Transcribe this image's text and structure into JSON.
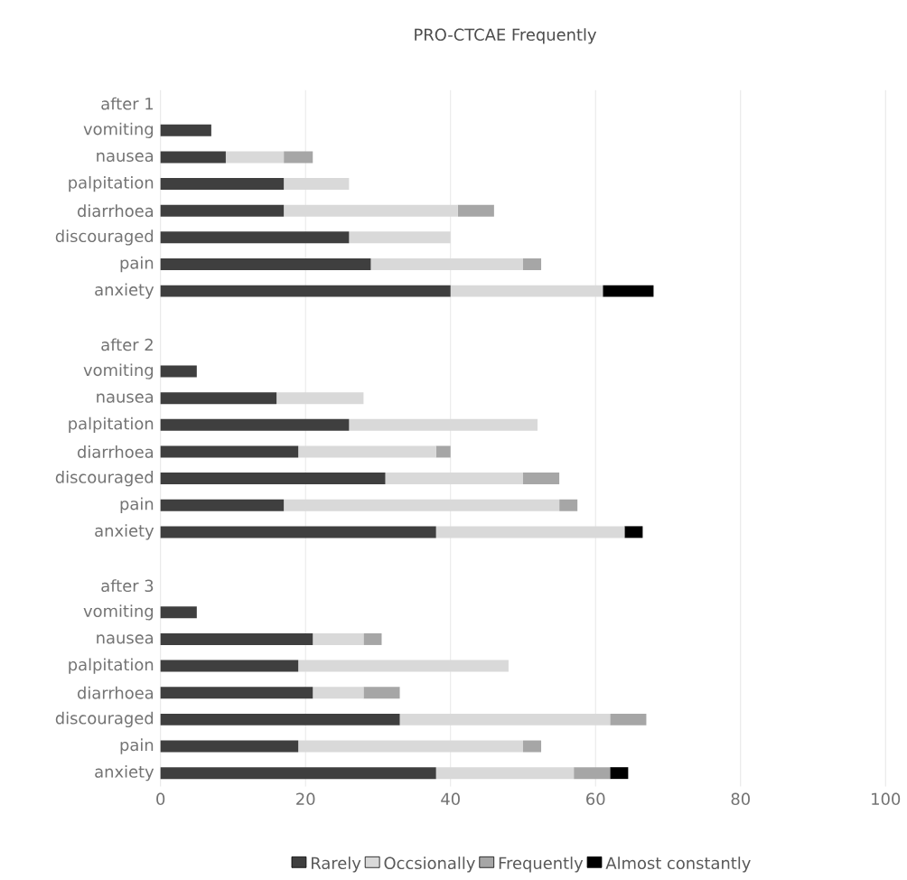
{
  "chart_data": {
    "type": "bar",
    "orientation": "horizontal",
    "stacked": true,
    "title": "PRO-CTCAE Frequently",
    "categories": [
      "after 1",
      "vomiting",
      "nausea",
      "palpitation",
      "diarrhoea",
      "discouraged",
      "pain",
      "anxiety",
      null,
      "after 2",
      "vomiting",
      "nausea",
      "palpitation",
      "diarrhoea",
      "discouraged",
      "pain",
      "anxiety",
      null,
      "after 3",
      "vomiting",
      "nausea",
      "palpitation",
      "diarrhoea",
      "discouraged",
      "pain",
      "anxiety"
    ],
    "series": [
      {
        "name": "Rarely",
        "color": "#3f3f3f",
        "values": [
          null,
          7,
          9,
          17,
          17,
          26,
          29,
          40,
          null,
          null,
          5,
          16,
          26,
          19,
          31,
          17,
          38,
          null,
          null,
          5,
          21,
          19,
          21,
          33,
          19,
          38
        ]
      },
      {
        "name": "Occsionally",
        "color": "#d9d9d9",
        "values": [
          null,
          null,
          8,
          9,
          24,
          14,
          21,
          21,
          null,
          null,
          null,
          12,
          26,
          19,
          19,
          38,
          26,
          null,
          null,
          null,
          7,
          29,
          7,
          29,
          31,
          19
        ]
      },
      {
        "name": "Frequently",
        "color": "#a6a6a6",
        "values": [
          null,
          null,
          4,
          null,
          5,
          null,
          2.5,
          null,
          null,
          null,
          null,
          null,
          null,
          2,
          5,
          2.5,
          null,
          null,
          null,
          null,
          2.5,
          null,
          5,
          5,
          2.5,
          5
        ]
      },
      {
        "name": "Almost constantly",
        "color": "#000000",
        "values": [
          null,
          null,
          null,
          null,
          null,
          null,
          null,
          7,
          null,
          null,
          null,
          null,
          null,
          null,
          null,
          null,
          2.5,
          null,
          null,
          null,
          null,
          null,
          null,
          null,
          null,
          2.5
        ]
      }
    ],
    "xlim": [
      0,
      100
    ],
    "xticks": [
      0,
      20,
      40,
      60,
      80,
      100
    ],
    "grid": "x",
    "legend": "bottom"
  }
}
